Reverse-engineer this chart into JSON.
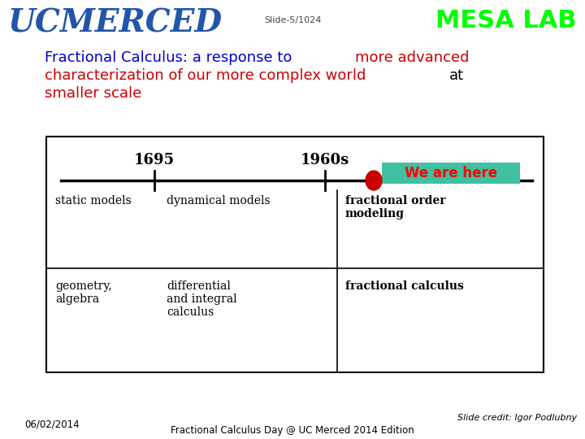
{
  "slide_label": "Slide-5/1024",
  "mesa_lab_text": "MESA LAB",
  "mesa_lab_color": "#00ff00",
  "ucmerced_text": "UCMERCED",
  "ucmerced_color": "#2255aa",
  "title_parts": [
    {
      "text": "Fractional Calculus: a response to ",
      "color": "#0000cc"
    },
    {
      "text": "more advanced",
      "color": "#cc0000"
    }
  ],
  "title_line2_parts": [
    {
      "text": "characterization of our more complex world ",
      "color": "#cc0000"
    },
    {
      "text": "at",
      "color": "#000000"
    }
  ],
  "title_line3": "smaller scale",
  "title_line3_color": "#cc0000",
  "year1": "1695",
  "year2": "1960s",
  "we_are_here": "We are here",
  "we_are_here_color": "#ff0000",
  "we_are_here_bg": "#40c0a0",
  "dot_color": "#cc0000",
  "cell_top_left": "static models",
  "cell_top_mid": "dynamical models",
  "cell_top_right_line1": "fractional order",
  "cell_top_right_line2": "modeling",
  "cell_bot_left_line1": "geometry,",
  "cell_bot_left_line2": "algebra",
  "cell_bot_mid_line1": "differential",
  "cell_bot_mid_line2": "and integral",
  "cell_bot_mid_line3": "calculus",
  "cell_bot_right": "fractional calculus",
  "footer_date": "06/02/2014",
  "footer_center": "Fractional Calculus Day @ UC Merced 2014 Edition",
  "footer_right": "Slide credit: Igor Podlubny",
  "bg_color": "#ffffff"
}
